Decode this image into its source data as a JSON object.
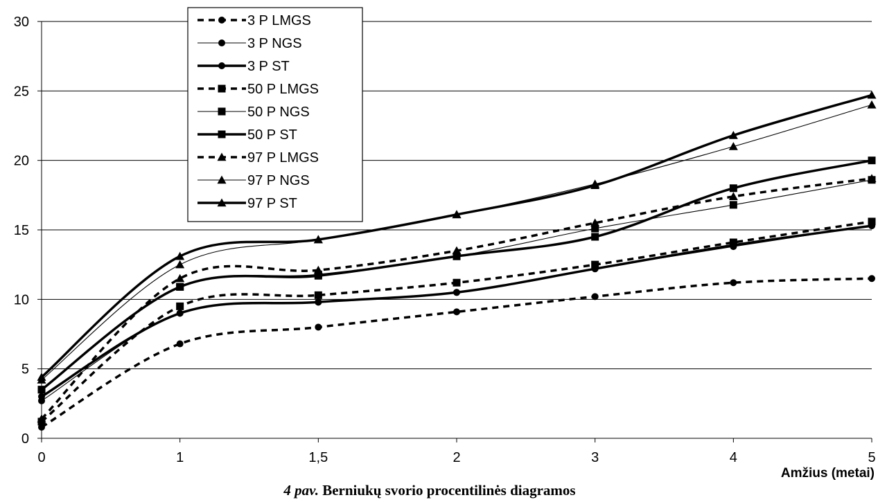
{
  "chart_data": {
    "type": "line",
    "xlabel": "Amžius (metai)",
    "ylabel": "",
    "categories": [
      "0",
      "1",
      "1,5",
      "2",
      "3",
      "4",
      "5"
    ],
    "ylim": [
      0,
      30
    ],
    "yticks": [
      0,
      5,
      10,
      15,
      20,
      25,
      30
    ],
    "grid": "horizontal",
    "legend_position": "top-left",
    "series": [
      {
        "name": "3 P LMGS",
        "marker": "circle",
        "style": "dashed",
        "values": [
          0.8,
          6.8,
          8.0,
          9.1,
          10.2,
          11.2,
          11.5
        ]
      },
      {
        "name": "3 P NGS",
        "marker": "circle",
        "style": "thin",
        "values": [
          2.7,
          9.0,
          9.8,
          10.5,
          12.2,
          13.8,
          15.3
        ]
      },
      {
        "name": "3 P ST",
        "marker": "circle",
        "style": "thick",
        "values": [
          3.0,
          9.0,
          9.8,
          10.5,
          12.2,
          13.9,
          15.3
        ]
      },
      {
        "name": "50 P LMGS",
        "marker": "square",
        "style": "dashed",
        "values": [
          1.2,
          9.5,
          10.3,
          11.2,
          12.5,
          14.1,
          15.6
        ]
      },
      {
        "name": "50 P NGS",
        "marker": "square",
        "style": "thin",
        "values": [
          3.5,
          10.9,
          11.8,
          13.1,
          15.1,
          16.8,
          18.6
        ]
      },
      {
        "name": "50 P ST",
        "marker": "square",
        "style": "thick",
        "values": [
          3.5,
          10.9,
          11.7,
          13.1,
          14.5,
          18.0,
          20.0
        ]
      },
      {
        "name": "97 P LMGS",
        "marker": "triangle",
        "style": "dashed",
        "values": [
          1.4,
          11.5,
          12.1,
          13.5,
          15.5,
          17.4,
          18.7
        ]
      },
      {
        "name": "97 P NGS",
        "marker": "triangle",
        "style": "thin",
        "values": [
          4.2,
          12.5,
          14.3,
          16.1,
          18.3,
          21.0,
          24.0
        ]
      },
      {
        "name": "97 P ST",
        "marker": "triangle",
        "style": "thick",
        "values": [
          4.4,
          13.1,
          14.3,
          16.1,
          18.2,
          21.8,
          24.7
        ]
      }
    ]
  },
  "caption": {
    "figure": "4 pav.",
    "text": " Berniukų svorio procentilinės diagramos"
  }
}
